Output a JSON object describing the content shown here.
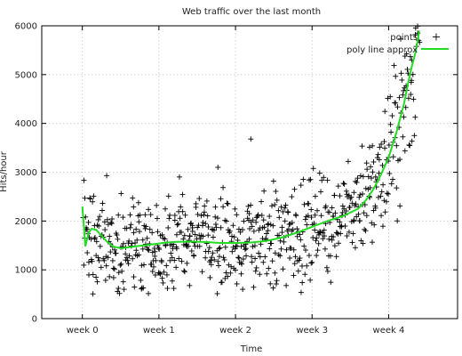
{
  "chart_data": {
    "type": "scatter",
    "title": "Web traffic over the last month",
    "xlabel": "Time",
    "ylabel": "Hits/hour",
    "xlim": [
      -0.53,
      4.9
    ],
    "ylim": [
      0,
      6000
    ],
    "x_ticks": [
      {
        "value": 0,
        "label": "week 0"
      },
      {
        "value": 1,
        "label": "week 1"
      },
      {
        "value": 2,
        "label": "week 2"
      },
      {
        "value": 3,
        "label": "week 3"
      },
      {
        "value": 4,
        "label": "week 4"
      }
    ],
    "y_ticks": [
      0,
      1000,
      2000,
      3000,
      4000,
      5000,
      6000
    ],
    "grid": true,
    "legend_position": "top-right",
    "series": [
      {
        "name": "points",
        "kind": "scatter",
        "marker": "plus",
        "color": "#000000",
        "point_count": 720
      },
      {
        "name": "poly line approx",
        "kind": "line",
        "color": "#22dd22",
        "x": [
          0.0,
          0.04,
          0.08,
          0.12,
          0.18,
          0.25,
          0.32,
          0.4,
          0.5,
          0.6,
          0.75,
          0.9,
          1.05,
          1.2,
          1.4,
          1.6,
          1.8,
          2.0,
          2.2,
          2.4,
          2.6,
          2.8,
          3.0,
          3.2,
          3.4,
          3.6,
          3.7,
          3.8,
          3.9,
          4.0,
          4.1,
          4.2,
          4.25,
          4.3,
          4.35,
          4.38,
          4.4
        ],
        "y": [
          2300,
          1480,
          1750,
          1840,
          1820,
          1700,
          1580,
          1480,
          1440,
          1460,
          1490,
          1520,
          1550,
          1570,
          1580,
          1570,
          1550,
          1550,
          1560,
          1590,
          1660,
          1760,
          1880,
          2000,
          2100,
          2250,
          2420,
          2650,
          2950,
          3300,
          3800,
          4400,
          4800,
          5150,
          5450,
          5700,
          5900
        ]
      }
    ]
  }
}
